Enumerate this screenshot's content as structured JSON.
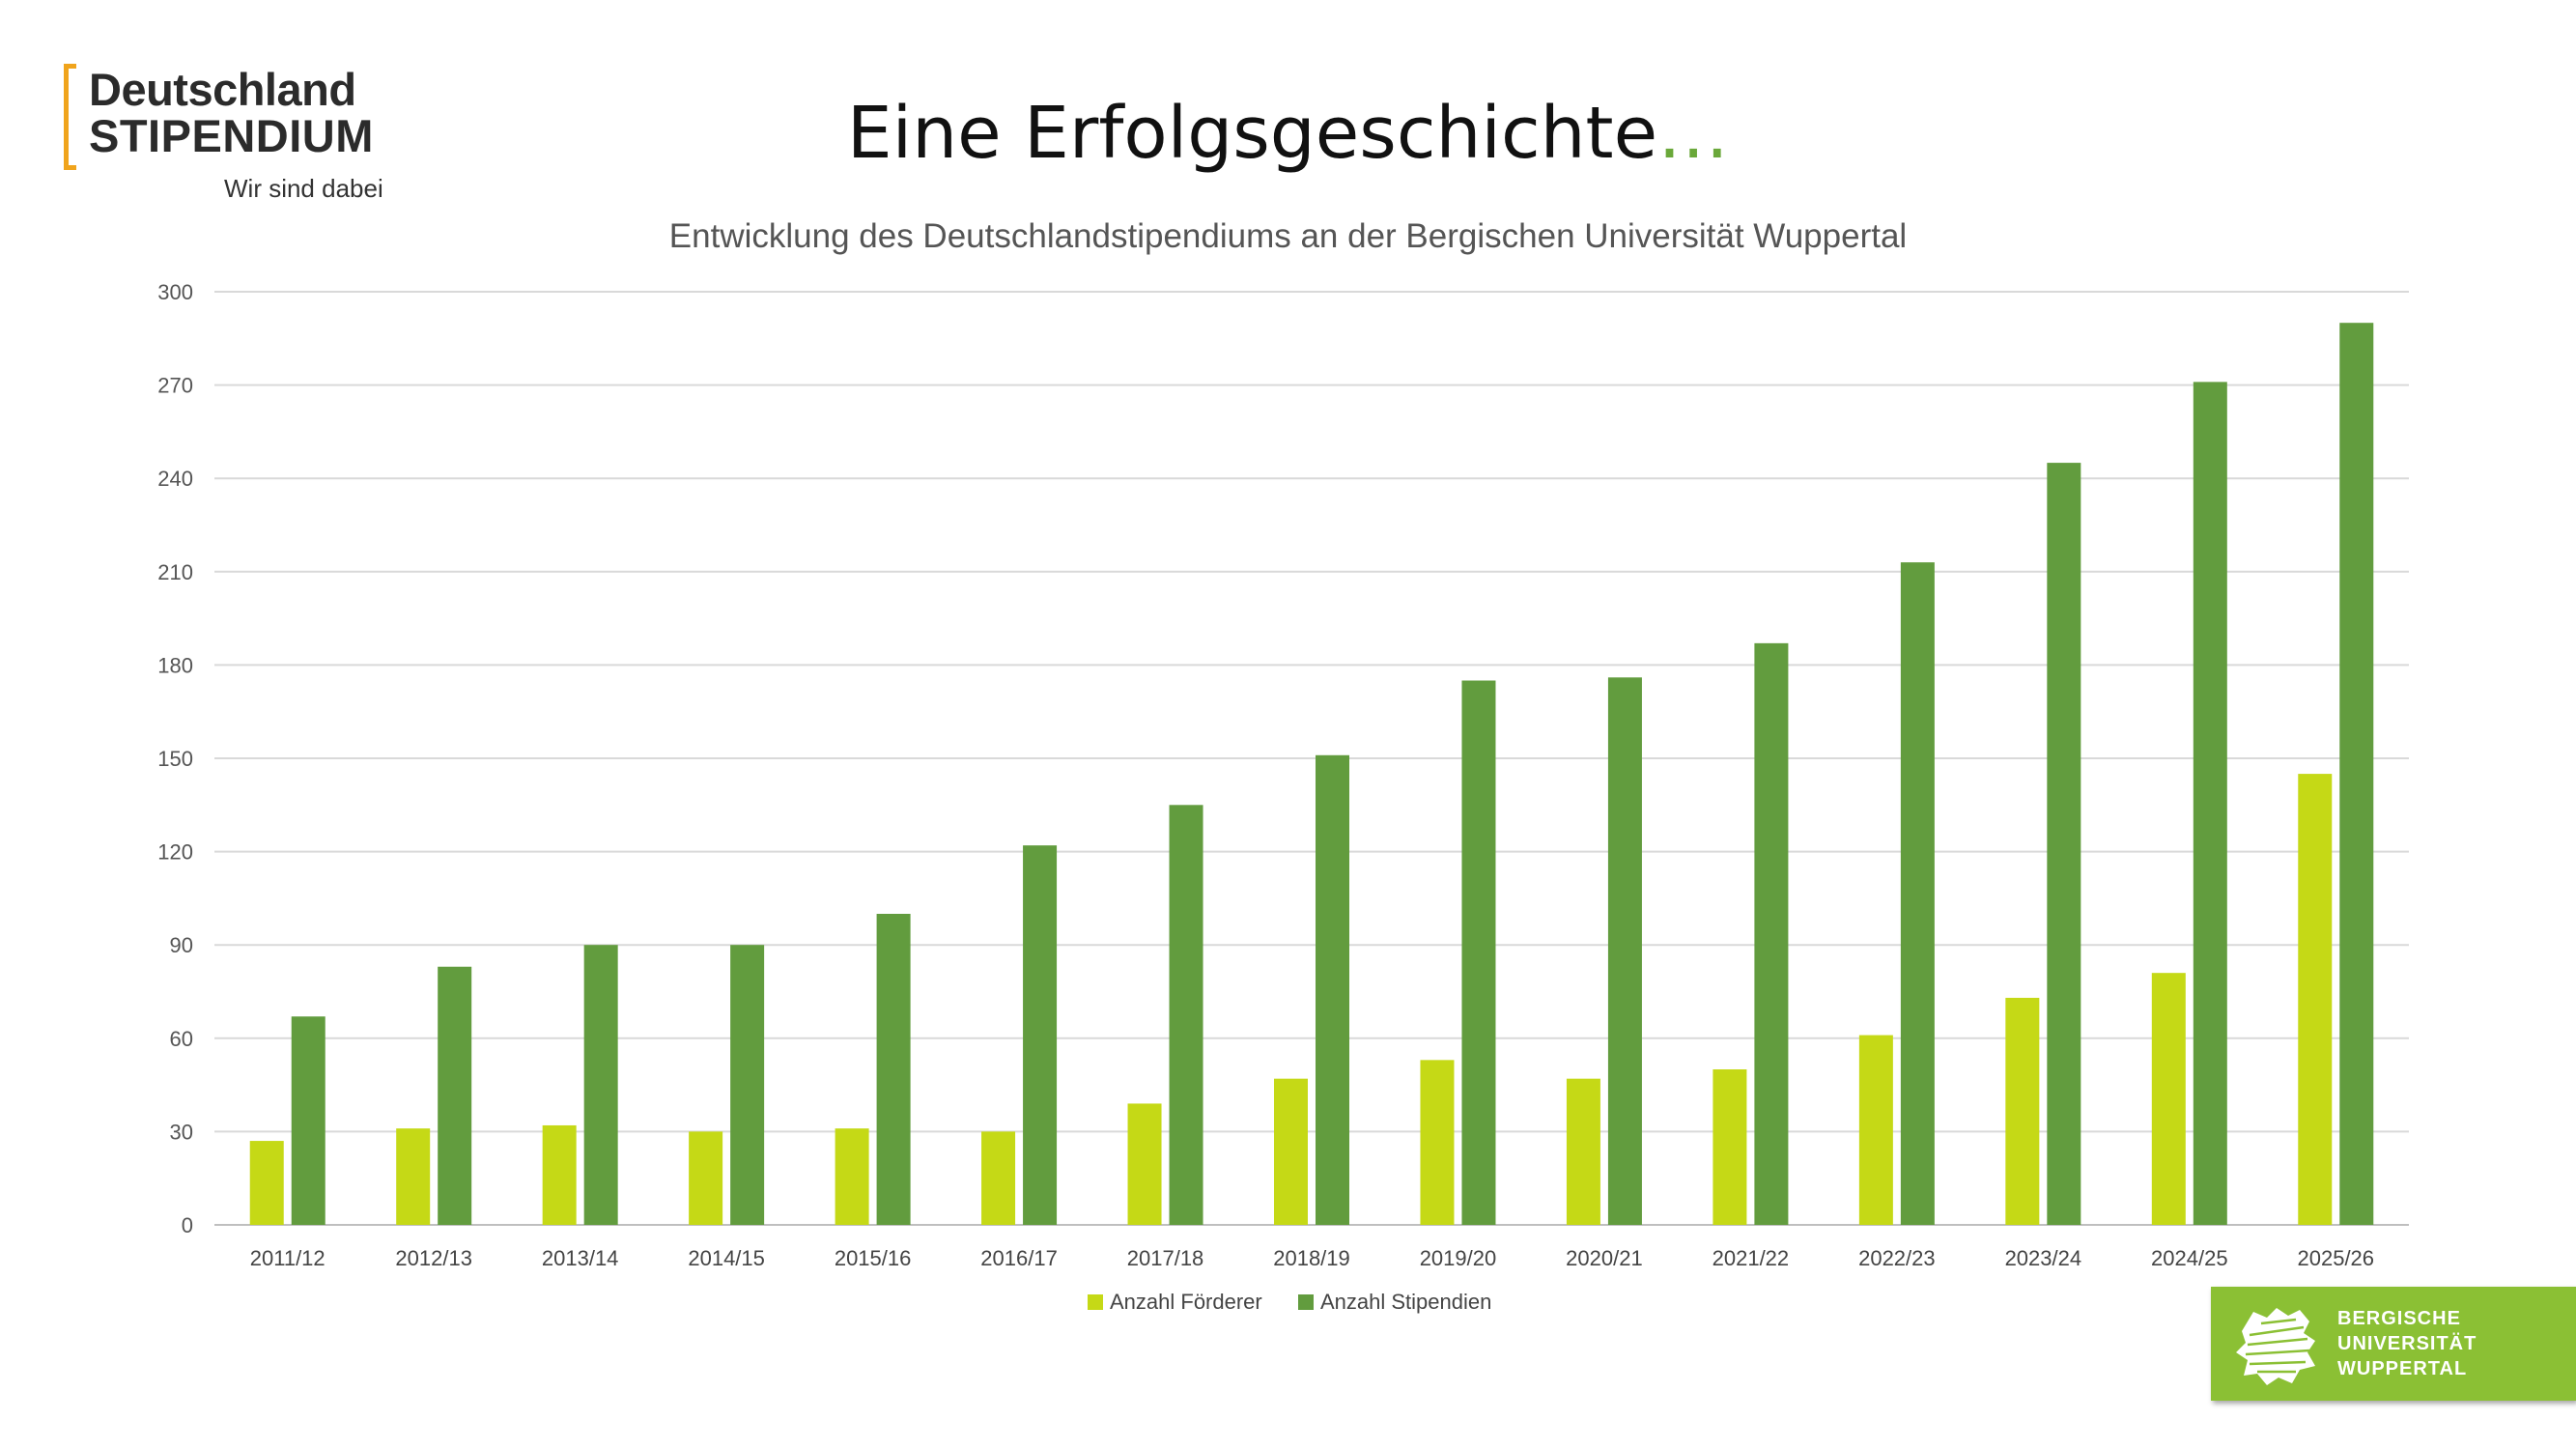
{
  "logo": {
    "line1": "Deutschland",
    "line2": "STIPENDIUM",
    "tagline": "Wir sind dabei"
  },
  "page_title": {
    "text": "Eine Erfolgsgeschichte",
    "ellipsis": "…"
  },
  "chart_data": {
    "type": "bar",
    "title": "Entwicklung des Deutschlandstipendiums an der Bergischen Universität Wuppertal",
    "xlabel": "",
    "ylabel": "",
    "ylim": [
      0,
      300
    ],
    "yticks": [
      0,
      30,
      60,
      90,
      120,
      150,
      180,
      210,
      240,
      270,
      300
    ],
    "grid": true,
    "legend_position": "bottom",
    "categories": [
      "2011/12",
      "2012/13",
      "2013/14",
      "2014/15",
      "2015/16",
      "2016/17",
      "2017/18",
      "2018/19",
      "2019/20",
      "2020/21",
      "2021/22",
      "2022/23",
      "2023/24",
      "2024/25",
      "2025/26"
    ],
    "series": [
      {
        "name": "Anzahl Förderer",
        "color": "#c5d916",
        "values": [
          27,
          31,
          32,
          30,
          31,
          30,
          39,
          47,
          53,
          47,
          50,
          61,
          73,
          81,
          145
        ]
      },
      {
        "name": "Anzahl Stipendien",
        "color": "#629c3e",
        "values": [
          67,
          83,
          90,
          90,
          100,
          122,
          135,
          151,
          175,
          176,
          187,
          213,
          245,
          271,
          290
        ]
      }
    ]
  },
  "university_logo": {
    "line1": "BERGISCHE",
    "line2": "UNIVERSITÄT",
    "line3": "WUPPERTAL",
    "color": "#8bc034",
    "icon": "lion-icon"
  }
}
